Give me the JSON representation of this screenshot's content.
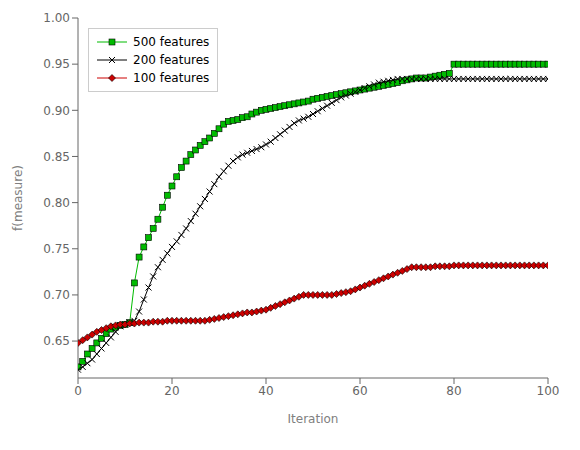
{
  "chart_data": {
    "type": "line",
    "xlabel": "Iteration",
    "ylabel": "f(measure)",
    "xlim": [
      0,
      100
    ],
    "xticks": [
      0,
      20,
      40,
      60,
      80,
      100
    ],
    "ylim": [
      0.61,
      1.0
    ],
    "yticks": [
      0.65,
      {
        "value": 0.7,
        "label": "0.70"
      },
      0.75,
      {
        "value": 0.8,
        "label": "0.80"
      },
      0.85,
      {
        "value": 0.9,
        "label": "0.90"
      },
      0.95,
      {
        "value": 1.0,
        "label": "1.00"
      }
    ],
    "grid": false,
    "legend": "upper left",
    "x": [
      0,
      1,
      2,
      3,
      4,
      5,
      6,
      7,
      8,
      9,
      10,
      11,
      12,
      13,
      14,
      15,
      16,
      17,
      18,
      19,
      20,
      21,
      22,
      23,
      24,
      25,
      26,
      27,
      28,
      29,
      30,
      31,
      32,
      33,
      34,
      35,
      36,
      37,
      38,
      39,
      40,
      41,
      42,
      43,
      44,
      45,
      46,
      47,
      48,
      49,
      50,
      51,
      52,
      53,
      54,
      55,
      56,
      57,
      58,
      59,
      60,
      61,
      62,
      63,
      64,
      65,
      66,
      67,
      68,
      69,
      70,
      71,
      72,
      73,
      74,
      75,
      76,
      77,
      78,
      79,
      80,
      81,
      82,
      83,
      84,
      85,
      86,
      87,
      88,
      89,
      90,
      91,
      92,
      93,
      94,
      95,
      96,
      97,
      98,
      99,
      100
    ],
    "series": [
      {
        "name": "500 features",
        "color": "#00bb00",
        "marker": "square",
        "values": [
          0.622,
          0.628,
          0.636,
          0.642,
          0.648,
          0.653,
          0.658,
          0.663,
          0.665,
          0.667,
          0.668,
          0.67,
          0.713,
          0.741,
          0.752,
          0.762,
          0.772,
          0.782,
          0.795,
          0.808,
          0.818,
          0.828,
          0.838,
          0.845,
          0.852,
          0.857,
          0.862,
          0.866,
          0.87,
          0.875,
          0.88,
          0.885,
          0.888,
          0.889,
          0.89,
          0.892,
          0.893,
          0.896,
          0.898,
          0.9,
          0.901,
          0.902,
          0.903,
          0.904,
          0.905,
          0.906,
          0.907,
          0.908,
          0.909,
          0.91,
          0.912,
          0.913,
          0.914,
          0.915,
          0.916,
          0.917,
          0.918,
          0.919,
          0.92,
          0.921,
          0.922,
          0.923,
          0.924,
          0.925,
          0.926,
          0.927,
          0.928,
          0.929,
          0.93,
          0.932,
          0.933,
          0.934,
          0.935,
          0.935,
          0.935,
          0.936,
          0.937,
          0.938,
          0.939,
          0.94,
          0.95,
          0.95,
          0.95,
          0.95,
          0.95,
          0.95,
          0.95,
          0.95,
          0.95,
          0.95,
          0.95,
          0.95,
          0.95,
          0.95,
          0.95,
          0.95,
          0.95,
          0.95,
          0.95,
          0.95,
          0.95
        ]
      },
      {
        "name": "200 features",
        "color": "#000000",
        "marker": "x",
        "values": [
          0.619,
          0.622,
          0.626,
          0.63,
          0.636,
          0.642,
          0.648,
          0.654,
          0.66,
          0.666,
          0.668,
          0.67,
          0.672,
          0.682,
          0.695,
          0.708,
          0.72,
          0.73,
          0.738,
          0.745,
          0.752,
          0.758,
          0.765,
          0.772,
          0.78,
          0.788,
          0.796,
          0.804,
          0.812,
          0.82,
          0.828,
          0.834,
          0.84,
          0.845,
          0.849,
          0.852,
          0.854,
          0.856,
          0.858,
          0.86,
          0.863,
          0.866,
          0.87,
          0.874,
          0.878,
          0.882,
          0.886,
          0.889,
          0.891,
          0.893,
          0.896,
          0.899,
          0.902,
          0.905,
          0.908,
          0.911,
          0.914,
          0.916,
          0.918,
          0.92,
          0.922,
          0.924,
          0.926,
          0.928,
          0.93,
          0.931,
          0.932,
          0.933,
          0.934,
          0.934,
          0.934,
          0.934,
          0.934,
          0.934,
          0.934,
          0.934,
          0.934,
          0.934,
          0.934,
          0.934,
          0.934,
          0.934,
          0.934,
          0.934,
          0.934,
          0.934,
          0.934,
          0.934,
          0.934,
          0.934,
          0.934,
          0.934,
          0.934,
          0.934,
          0.934,
          0.934,
          0.934,
          0.934,
          0.934,
          0.934,
          0.934
        ]
      },
      {
        "name": "100 features",
        "color": "#cc0000",
        "marker": "diamond",
        "values": [
          0.648,
          0.651,
          0.654,
          0.657,
          0.66,
          0.662,
          0.664,
          0.666,
          0.667,
          0.668,
          0.668,
          0.669,
          0.669,
          0.67,
          0.67,
          0.67,
          0.671,
          0.671,
          0.671,
          0.672,
          0.672,
          0.672,
          0.672,
          0.672,
          0.672,
          0.672,
          0.672,
          0.672,
          0.673,
          0.674,
          0.675,
          0.676,
          0.677,
          0.678,
          0.679,
          0.68,
          0.681,
          0.681,
          0.682,
          0.683,
          0.684,
          0.686,
          0.688,
          0.69,
          0.692,
          0.694,
          0.696,
          0.698,
          0.7,
          0.7,
          0.7,
          0.7,
          0.7,
          0.7,
          0.7,
          0.701,
          0.702,
          0.703,
          0.704,
          0.706,
          0.708,
          0.71,
          0.712,
          0.714,
          0.716,
          0.718,
          0.72,
          0.722,
          0.724,
          0.726,
          0.728,
          0.73,
          0.73,
          0.73,
          0.73,
          0.73,
          0.731,
          0.731,
          0.731,
          0.731,
          0.732,
          0.732,
          0.732,
          0.732,
          0.732,
          0.732,
          0.732,
          0.732,
          0.732,
          0.732,
          0.732,
          0.732,
          0.732,
          0.732,
          0.732,
          0.732,
          0.732,
          0.732,
          0.732,
          0.732,
          0.732
        ]
      }
    ]
  }
}
